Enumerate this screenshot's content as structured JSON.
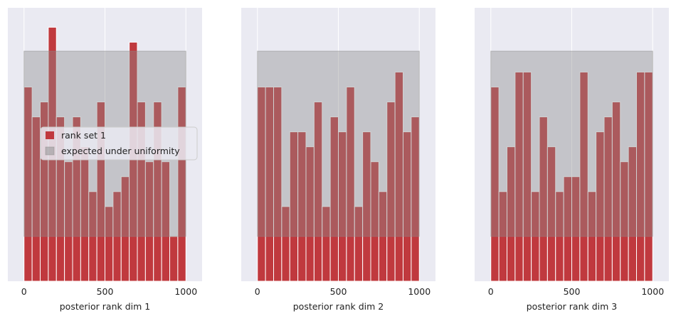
{
  "colors": {
    "plot_background": "#eaeaf2",
    "grid": "#ffffff",
    "bar": "#c0393e",
    "uniform_band": "#8c8c8c",
    "text": "#222222"
  },
  "chart_data": [
    {
      "type": "bar",
      "xlabel": "posterior rank dim 1",
      "xlim": [
        -100,
        1100
      ],
      "ylim": [
        0,
        18.3
      ],
      "xticks": [
        0,
        500,
        1000
      ],
      "bin_edges": [
        0,
        50,
        100,
        150,
        200,
        250,
        300,
        350,
        400,
        450,
        500,
        550,
        600,
        650,
        700,
        750,
        800,
        850,
        900,
        950,
        1000
      ],
      "values": [
        13,
        11,
        12,
        17,
        11,
        8,
        11,
        9,
        6,
        12,
        5,
        6,
        7,
        16,
        12,
        8,
        12,
        8,
        3,
        13
      ],
      "uniform_band": [
        3,
        15.4
      ],
      "legend": {
        "position": "center-left",
        "entries": [
          "rank set 1",
          "expected under uniformity"
        ]
      },
      "grid": true
    },
    {
      "type": "bar",
      "xlabel": "posterior rank dim 2",
      "xlim": [
        -100,
        1100
      ],
      "ylim": [
        0,
        18.3
      ],
      "xticks": [
        0,
        500,
        1000
      ],
      "bin_edges": [
        0,
        50,
        100,
        150,
        200,
        250,
        300,
        350,
        400,
        450,
        500,
        550,
        600,
        650,
        700,
        750,
        800,
        850,
        900,
        950,
        1000
      ],
      "values": [
        13,
        13,
        13,
        5,
        10,
        10,
        9,
        12,
        5,
        11,
        10,
        13,
        5,
        10,
        8,
        6,
        12,
        14,
        10,
        11
      ],
      "uniform_band": [
        3,
        15.4
      ],
      "grid": true
    },
    {
      "type": "bar",
      "xlabel": "posterior rank dim 3",
      "xlim": [
        -100,
        1100
      ],
      "ylim": [
        0,
        18.3
      ],
      "xticks": [
        0,
        500,
        1000
      ],
      "bin_edges": [
        0,
        50,
        100,
        150,
        200,
        250,
        300,
        350,
        400,
        450,
        500,
        550,
        600,
        650,
        700,
        750,
        800,
        850,
        900,
        950,
        1000
      ],
      "values": [
        13,
        6,
        9,
        14,
        14,
        6,
        11,
        9,
        6,
        7,
        7,
        14,
        6,
        10,
        11,
        12,
        8,
        9,
        14,
        14
      ],
      "uniform_band": [
        3,
        15.4
      ],
      "grid": true
    }
  ]
}
